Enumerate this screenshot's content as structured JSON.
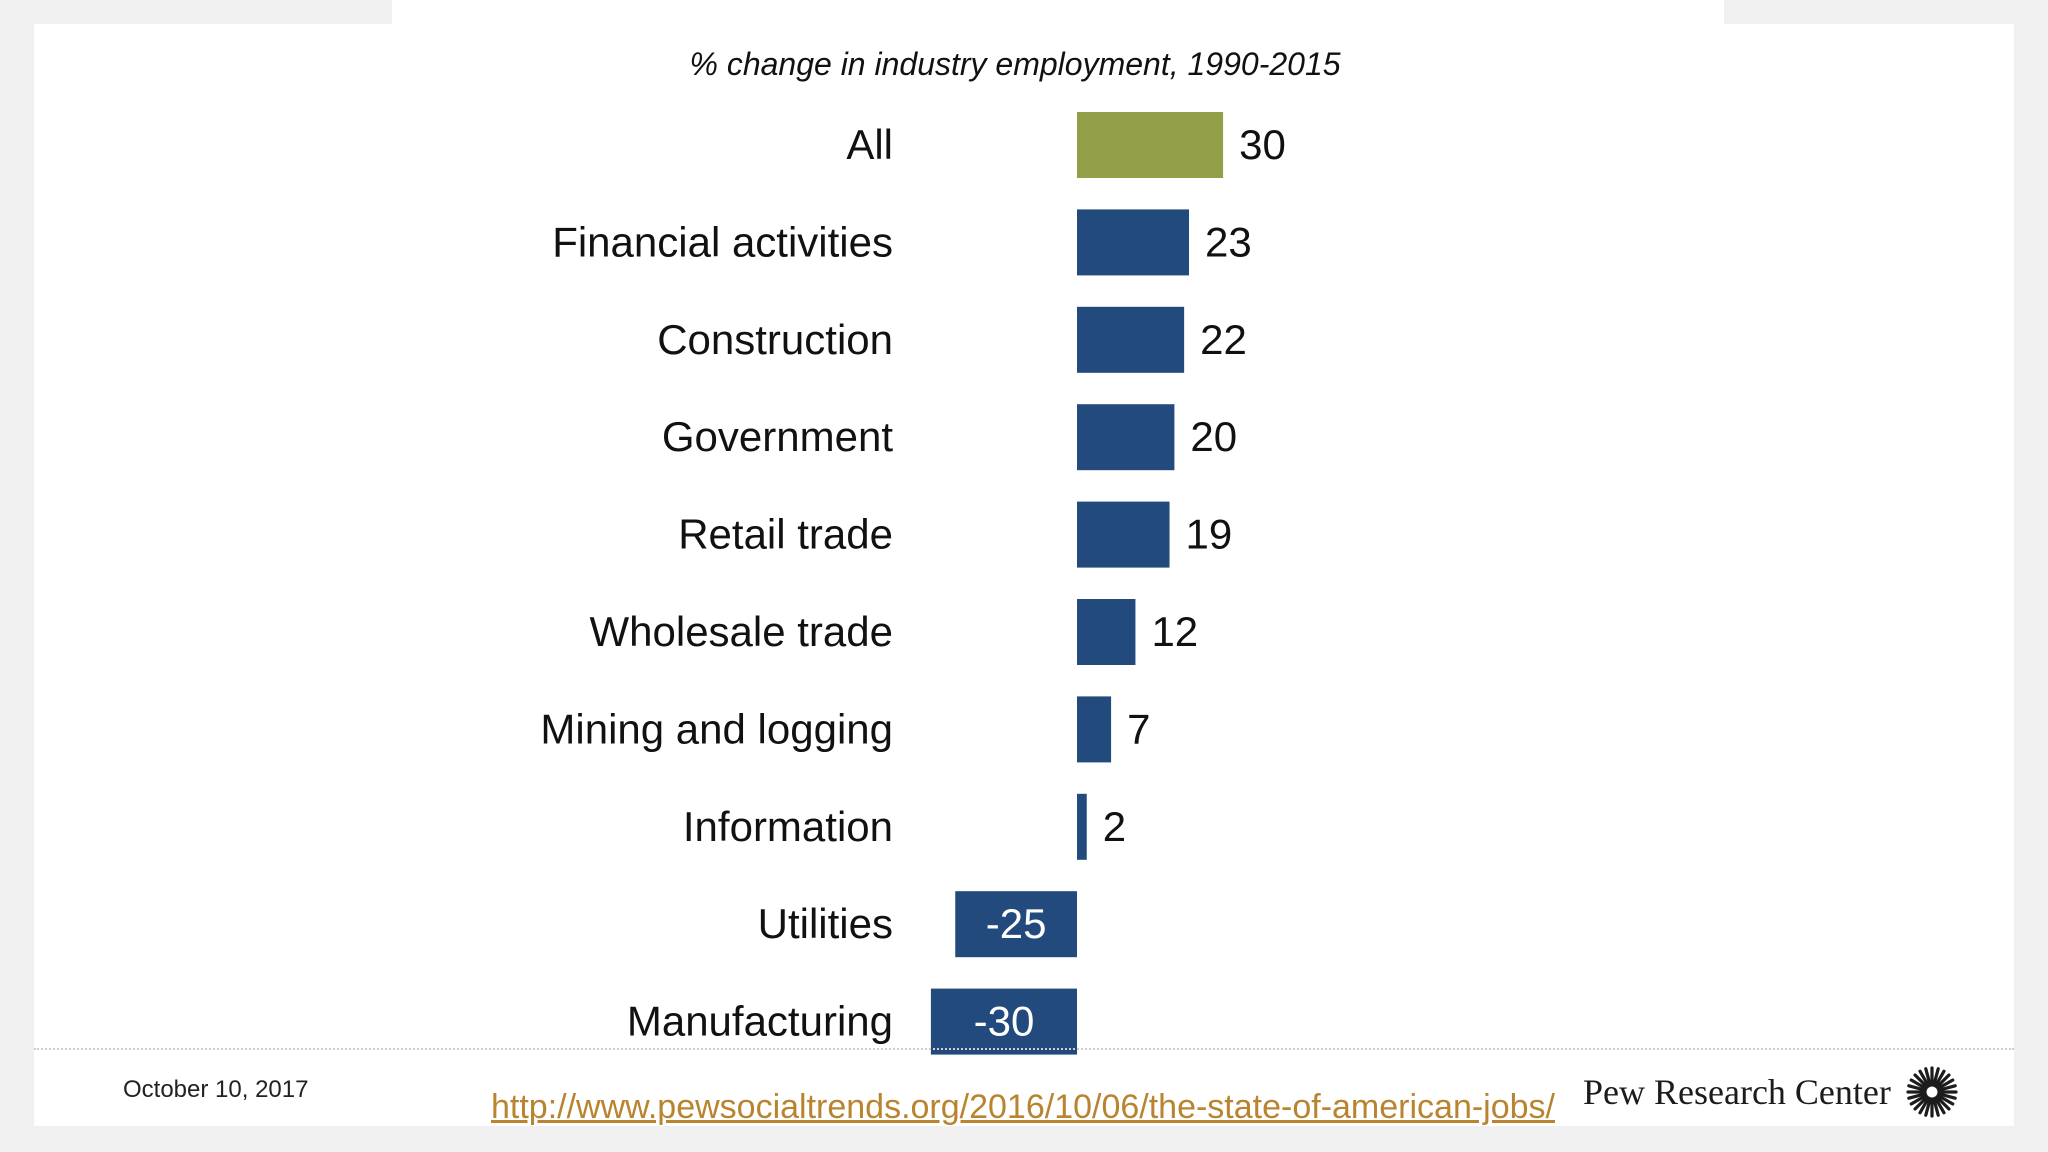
{
  "slide": {
    "date": "October 10, 2017",
    "source_url": "http://www.pewsocialtrends.org/2016/10/06/the-state-of-american-jobs/",
    "brand": "Pew Research Center",
    "brand_icon": "starburst-logo-icon"
  },
  "colors": {
    "highlight": "#939e48",
    "bar": "#234a7d",
    "inside_label": "#ffffff",
    "outside_label": "#111111"
  },
  "chart_data": {
    "type": "bar",
    "orientation": "horizontal",
    "title": "% change in industry employment, 1990-2015",
    "categories": [
      "All",
      "Financial activities",
      "Construction",
      "Government",
      "Retail trade",
      "Wholesale trade",
      "Mining and logging",
      "Information",
      "Utilities",
      "Manufacturing"
    ],
    "values": [
      30,
      23,
      22,
      20,
      19,
      12,
      7,
      2,
      -25,
      -30
    ],
    "data_labels": [
      "30",
      "23",
      "22",
      "20",
      "19",
      "12",
      "7",
      "2",
      "-25",
      "-30"
    ],
    "highlighted_category": "All",
    "grid": false,
    "legend": "none"
  }
}
